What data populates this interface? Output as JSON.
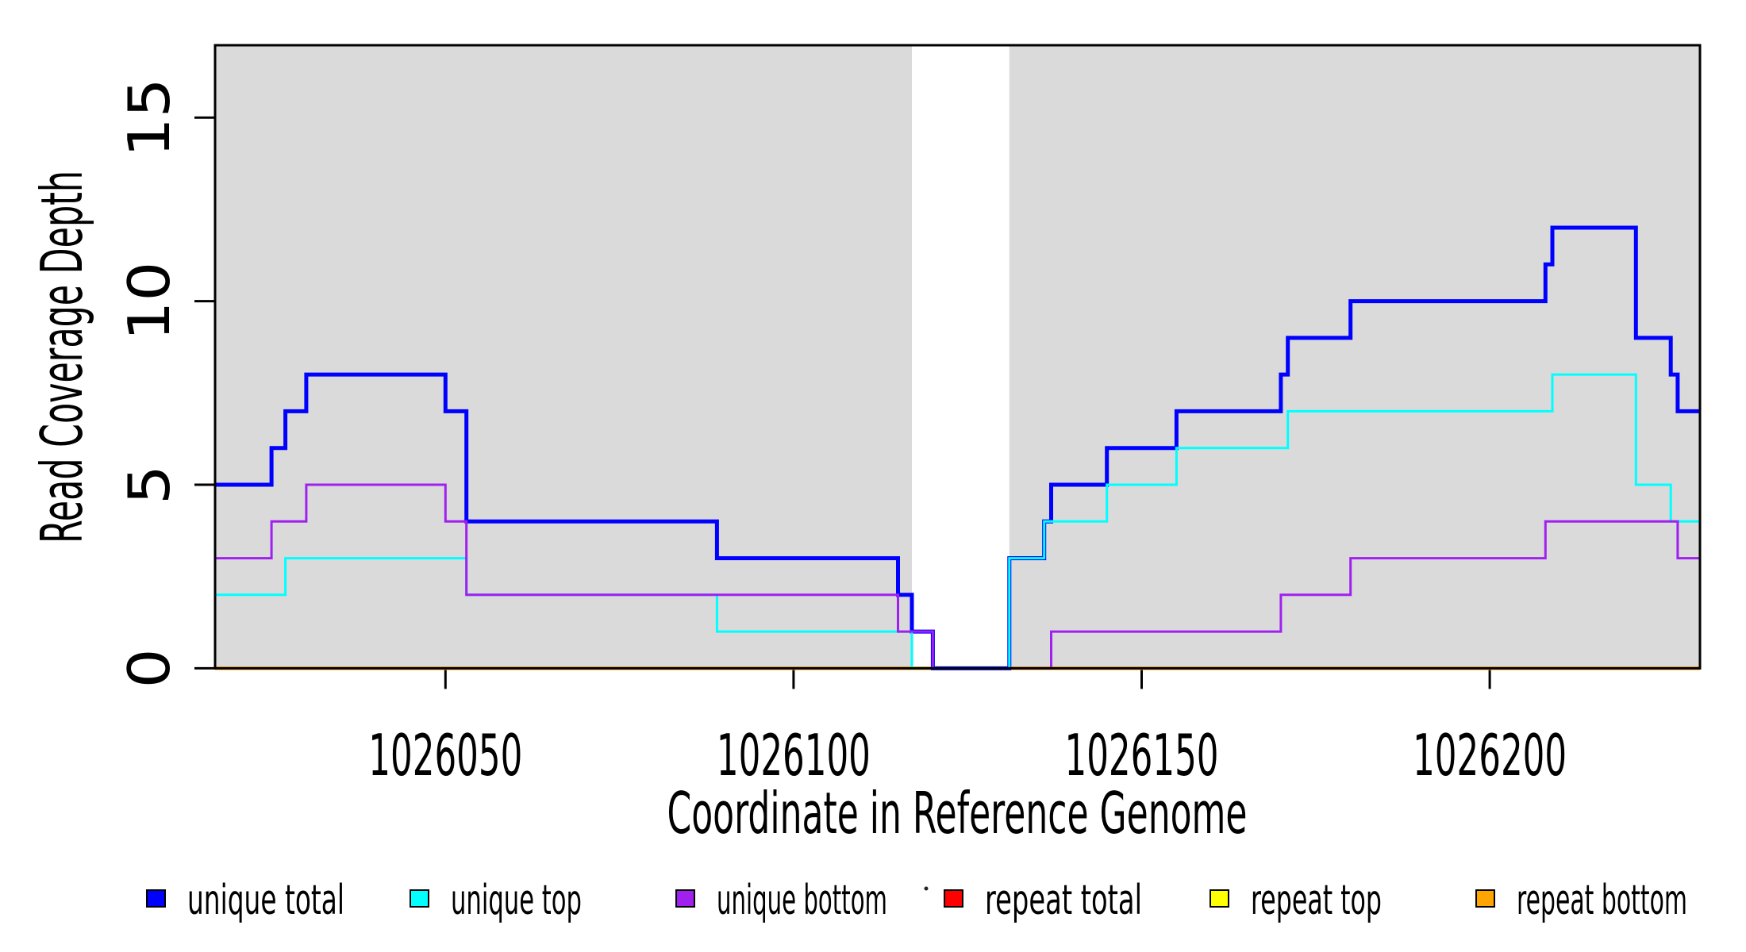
{
  "chart_data": {
    "type": "line",
    "subtype": "step-coverage-plot",
    "title": "",
    "xlabel": "Coordinate in Reference Genome",
    "ylabel": "Read Coverage Depth",
    "xlim": [
      1026016.9,
      1026230.2
    ],
    "ylim": [
      0,
      16.97
    ],
    "x_ticks": [
      "1026050",
      "1026100",
      "1026150",
      "1026200"
    ],
    "x_tick_values": [
      1026050,
      1026100,
      1026150,
      1026200
    ],
    "y_ticks": [
      "0",
      "5",
      "10",
      "15"
    ],
    "y_tick_values": [
      0,
      5,
      10,
      15
    ],
    "grid": false,
    "background_color": "#FFFFFF",
    "shaded_region_color": "#DADADA",
    "axis_color": "#000000",
    "shaded_regions": [
      {
        "x0": 1026016.9,
        "x1": 1026117
      },
      {
        "x0": 1026131,
        "x1": 1026230.2
      }
    ],
    "series": [
      {
        "name": "repeat total",
        "color": "#FF0000",
        "width": 3,
        "points": [
          [
            1026017,
            0
          ],
          [
            1026230,
            0
          ]
        ]
      },
      {
        "name": "repeat top",
        "color": "#FFFF00",
        "width": 3,
        "points": [
          [
            1026017,
            0
          ],
          [
            1026230,
            0
          ]
        ]
      },
      {
        "name": "repeat bottom",
        "color": "#FFA500",
        "width": 4.5,
        "points": [
          [
            1026017,
            0
          ],
          [
            1026230,
            0
          ]
        ]
      },
      {
        "name": "unique total",
        "color": "#0000FF",
        "width": 5,
        "points": [
          [
            1026017,
            5
          ],
          [
            1026025,
            6
          ],
          [
            1026027,
            7
          ],
          [
            1026030,
            8
          ],
          [
            1026050,
            7
          ],
          [
            1026053,
            4
          ],
          [
            1026089,
            3
          ],
          [
            1026115,
            2
          ],
          [
            1026117,
            1
          ],
          [
            1026120,
            0
          ],
          [
            1026131,
            3
          ],
          [
            1026136,
            4
          ],
          [
            1026137,
            5
          ],
          [
            1026145,
            6
          ],
          [
            1026155,
            7
          ],
          [
            1026170,
            8
          ],
          [
            1026171,
            9
          ],
          [
            1026180,
            10
          ],
          [
            1026208,
            11
          ],
          [
            1026209,
            12
          ],
          [
            1026221,
            9
          ],
          [
            1026226,
            8
          ],
          [
            1026227,
            7
          ],
          [
            1026230,
            7
          ]
        ]
      },
      {
        "name": "unique top",
        "color": "#00FFFF",
        "width": 3,
        "points": [
          [
            1026017,
            2
          ],
          [
            1026027,
            3
          ],
          [
            1026053,
            2
          ],
          [
            1026089,
            1
          ],
          [
            1026117,
            0
          ],
          [
            1026131,
            3
          ],
          [
            1026136,
            4
          ],
          [
            1026145,
            5
          ],
          [
            1026155,
            6
          ],
          [
            1026171,
            7
          ],
          [
            1026209,
            8
          ],
          [
            1026221,
            5
          ],
          [
            1026226,
            4
          ],
          [
            1026230,
            4
          ]
        ]
      },
      {
        "name": "unique bottom",
        "color": "#A020F0",
        "width": 3,
        "points": [
          [
            1026017,
            3
          ],
          [
            1026025,
            4
          ],
          [
            1026030,
            5
          ],
          [
            1026050,
            4
          ],
          [
            1026053,
            2
          ],
          [
            1026115,
            1
          ],
          [
            1026120,
            0
          ],
          [
            1026137,
            1
          ],
          [
            1026170,
            2
          ],
          [
            1026180,
            3
          ],
          [
            1026208,
            4
          ],
          [
            1026227,
            3
          ],
          [
            1026230,
            3
          ]
        ]
      }
    ],
    "legend": [
      {
        "label": "unique total",
        "color": "#0000FF"
      },
      {
        "label": "unique top",
        "color": "#00FFFF"
      },
      {
        "label": "unique bottom",
        "color": "#A020F0"
      },
      {
        "label": "repeat total",
        "color": "#FF0000"
      },
      {
        "label": "repeat top",
        "color": "#FFFF00"
      },
      {
        "label": "repeat bottom",
        "color": "#FFA500"
      }
    ],
    "legend_position": "bottom"
  }
}
